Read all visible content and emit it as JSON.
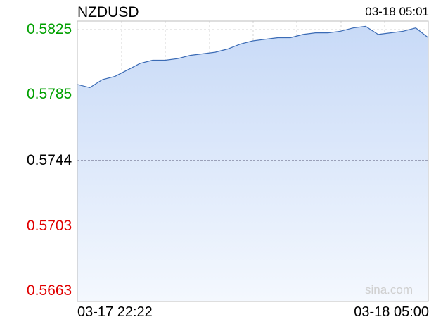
{
  "header": {
    "symbol": "NZDUSD",
    "timestamp": "03-18 05:01"
  },
  "watermark": "sina.com",
  "colors": {
    "up": "#00a000",
    "down": "#e00000",
    "neutral": "#000000",
    "line": "#3b6bb5",
    "fill_top": "#c8daf7",
    "fill_bottom": "#f4f8fe",
    "grid": "#d6d6d6",
    "reference": "#9aa0b8"
  },
  "chart_data": {
    "type": "area",
    "title": "NZDUSD",
    "reference_price": 0.5744,
    "ylim": [
      0.5663,
      0.5825
    ],
    "y_ticks": [
      {
        "label": "0.5825",
        "value": 0.5825,
        "tone": "up"
      },
      {
        "label": "0.5785",
        "value": 0.5785,
        "tone": "up"
      },
      {
        "label": "0.5744",
        "value": 0.5744,
        "tone": "neutral"
      },
      {
        "label": "0.5703",
        "value": 0.5703,
        "tone": "down"
      },
      {
        "label": "0.5663",
        "value": 0.5663,
        "tone": "down"
      }
    ],
    "x_start_label": "03-17 22:22",
    "x_end_label": "03-18 05:00",
    "x": [
      "22:22",
      "22:30",
      "22:40",
      "22:50",
      "23:00",
      "23:15",
      "23:30",
      "23:45",
      "00:00",
      "00:15",
      "00:30",
      "00:45",
      "01:00",
      "01:15",
      "01:30",
      "01:45",
      "02:00",
      "02:15",
      "02:30",
      "02:45",
      "03:00",
      "03:15",
      "03:30",
      "03:45",
      "04:00",
      "04:15",
      "04:30",
      "04:45",
      "05:00"
    ],
    "values": [
      0.5791,
      0.5789,
      0.5794,
      0.5796,
      0.58,
      0.5804,
      0.5806,
      0.5806,
      0.5807,
      0.5809,
      0.581,
      0.5811,
      0.5813,
      0.5816,
      0.5818,
      0.5819,
      0.582,
      0.582,
      0.5822,
      0.5823,
      0.5823,
      0.5824,
      0.5826,
      0.5827,
      0.5822,
      0.5823,
      0.5824,
      0.5826,
      0.582
    ],
    "grid": true
  }
}
